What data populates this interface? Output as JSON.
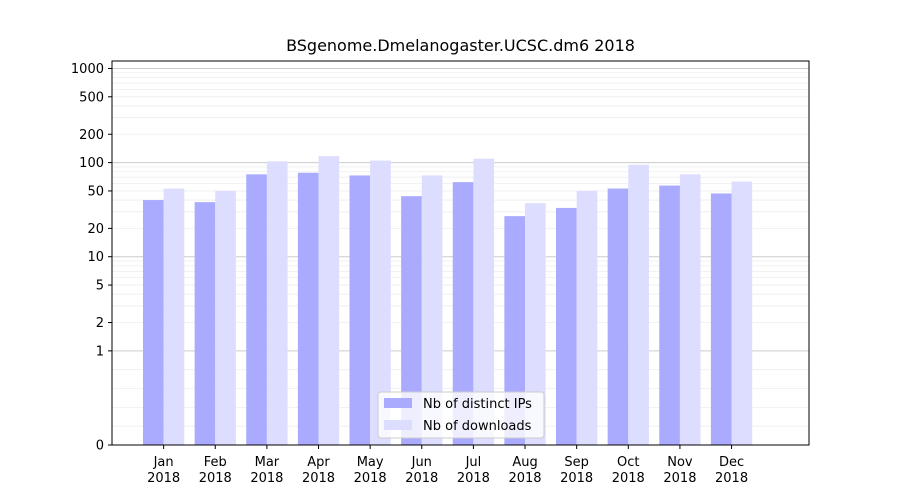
{
  "chart_data": {
    "type": "bar",
    "title": "BSgenome.Dmelanogaster.UCSC.dm6 2018",
    "xlabel": "",
    "ylabel": "",
    "y_scale": "symlog",
    "ylim": [
      0,
      1200
    ],
    "y_ticks": [
      0,
      1,
      2,
      5,
      10,
      20,
      50,
      100,
      200,
      500,
      1000
    ],
    "grid": true,
    "legend_position": "bottom-center",
    "categories": [
      [
        "Jan",
        "2018"
      ],
      [
        "Feb",
        "2018"
      ],
      [
        "Mar",
        "2018"
      ],
      [
        "Apr",
        "2018"
      ],
      [
        "May",
        "2018"
      ],
      [
        "Jun",
        "2018"
      ],
      [
        "Jul",
        "2018"
      ],
      [
        "Aug",
        "2018"
      ],
      [
        "Sep",
        "2018"
      ],
      [
        "Oct",
        "2018"
      ],
      [
        "Nov",
        "2018"
      ],
      [
        "Dec",
        "2018"
      ]
    ],
    "series": [
      {
        "name": "Nb of distinct IPs",
        "color": "#aaaaff",
        "values": [
          40,
          38,
          75,
          78,
          73,
          44,
          62,
          27,
          33,
          53,
          57,
          47
        ]
      },
      {
        "name": "Nb of downloads",
        "color": "#ddddff",
        "values": [
          53,
          50,
          103,
          117,
          105,
          73,
          110,
          37,
          50,
          95,
          75,
          63
        ]
      }
    ]
  }
}
